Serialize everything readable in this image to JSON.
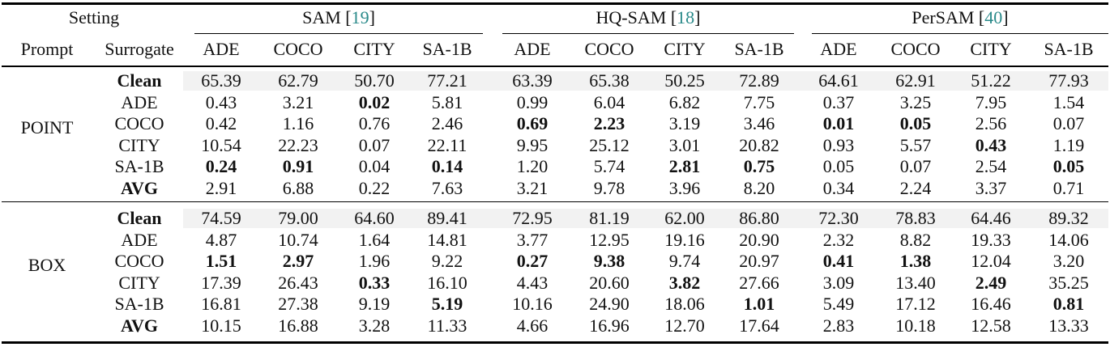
{
  "header": {
    "setting": "Setting",
    "prompt": "Prompt",
    "surrogate": "Surrogate",
    "models": [
      {
        "name": "SAM",
        "ref": "19"
      },
      {
        "name": "HQ-SAM",
        "ref": "18"
      },
      {
        "name": "PerSAM",
        "ref": "40"
      }
    ],
    "datasets": [
      "ADE",
      "COCO",
      "CITY",
      "SA-1B",
      "ADE",
      "COCO",
      "CITY",
      "SA-1B",
      "ADE",
      "COCO",
      "CITY",
      "SA-1B"
    ]
  },
  "groups": [
    {
      "prompt": "POINT",
      "rows": [
        {
          "surrogate": "Clean",
          "values": [
            "65.39",
            "62.79",
            "50.70",
            "77.21",
            "63.39",
            "65.38",
            "50.25",
            "72.89",
            "64.61",
            "62.91",
            "51.22",
            "77.93"
          ],
          "bold": []
        },
        {
          "surrogate": "ADE",
          "values": [
            "0.43",
            "3.21",
            "0.02",
            "5.81",
            "0.99",
            "6.04",
            "6.82",
            "7.75",
            "0.37",
            "3.25",
            "7.95",
            "1.54"
          ],
          "bold": [
            2
          ]
        },
        {
          "surrogate": "COCO",
          "values": [
            "0.42",
            "1.16",
            "0.76",
            "2.46",
            "0.69",
            "2.23",
            "3.19",
            "3.46",
            "0.01",
            "0.05",
            "2.56",
            "0.07"
          ],
          "bold": [
            4,
            5,
            8,
            9
          ]
        },
        {
          "surrogate": "CITY",
          "values": [
            "10.54",
            "22.23",
            "0.07",
            "22.11",
            "9.95",
            "25.12",
            "3.01",
            "20.82",
            "0.93",
            "5.57",
            "0.43",
            "1.19"
          ],
          "bold": [
            10
          ]
        },
        {
          "surrogate": "SA-1B",
          "values": [
            "0.24",
            "0.91",
            "0.04",
            "0.14",
            "1.20",
            "5.74",
            "2.81",
            "0.75",
            "0.05",
            "0.07",
            "2.54",
            "0.05"
          ],
          "bold": [
            0,
            1,
            3,
            6,
            7,
            11
          ]
        },
        {
          "surrogate": "AVG",
          "values": [
            "2.91",
            "6.88",
            "0.22",
            "7.63",
            "3.21",
            "9.78",
            "3.96",
            "8.20",
            "0.34",
            "2.24",
            "3.37",
            "0.71"
          ],
          "bold": []
        }
      ]
    },
    {
      "prompt": "BOX",
      "rows": [
        {
          "surrogate": "Clean",
          "values": [
            "74.59",
            "79.00",
            "64.60",
            "89.41",
            "72.95",
            "81.19",
            "62.00",
            "86.80",
            "72.30",
            "78.83",
            "64.46",
            "89.32"
          ],
          "bold": []
        },
        {
          "surrogate": "ADE",
          "values": [
            "4.87",
            "10.74",
            "1.64",
            "14.81",
            "3.77",
            "12.95",
            "19.16",
            "20.90",
            "2.32",
            "8.82",
            "19.33",
            "14.06"
          ],
          "bold": []
        },
        {
          "surrogate": "COCO",
          "values": [
            "1.51",
            "2.97",
            "1.96",
            "9.22",
            "0.27",
            "9.38",
            "9.74",
            "20.97",
            "0.41",
            "1.38",
            "12.04",
            "3.20"
          ],
          "bold": [
            0,
            1,
            4,
            5,
            8,
            9
          ]
        },
        {
          "surrogate": "CITY",
          "values": [
            "17.39",
            "26.43",
            "0.33",
            "16.10",
            "4.43",
            "20.60",
            "3.82",
            "27.66",
            "3.09",
            "13.40",
            "2.49",
            "35.25"
          ],
          "bold": [
            2,
            6,
            10
          ]
        },
        {
          "surrogate": "SA-1B",
          "values": [
            "16.81",
            "27.38",
            "9.19",
            "5.19",
            "10.16",
            "24.90",
            "18.06",
            "1.01",
            "5.49",
            "17.12",
            "16.46",
            "0.81"
          ],
          "bold": [
            3,
            7,
            11
          ]
        },
        {
          "surrogate": "AVG",
          "values": [
            "10.15",
            "16.88",
            "3.28",
            "11.33",
            "4.66",
            "16.96",
            "12.70",
            "17.64",
            "2.83",
            "10.18",
            "12.58",
            "13.33"
          ],
          "bold": []
        }
      ]
    }
  ]
}
